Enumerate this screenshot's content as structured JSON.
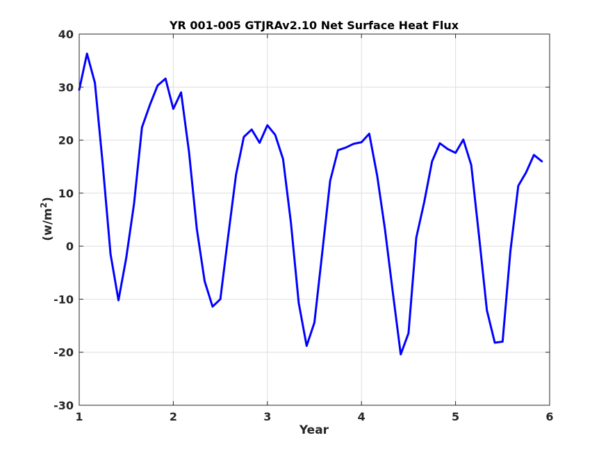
{
  "chart_data": {
    "type": "line",
    "title": "YR 001-005 GTJRAv2.10 Net Surface Heat Flux",
    "xlabel": "Year",
    "ylabel": "(w/m",
    "ylabel_superscript": "2",
    "ylabel_suffix": ")",
    "xlim": [
      1,
      6
    ],
    "ylim": [
      -30,
      40
    ],
    "xticks": [
      1,
      2,
      3,
      4,
      5,
      6
    ],
    "yticks": [
      -30,
      -20,
      -10,
      0,
      10,
      20,
      30,
      40
    ],
    "xtick_labels": [
      "1",
      "2",
      "3",
      "4",
      "5",
      "6"
    ],
    "ytick_labels": [
      "-30",
      "-20",
      "-10",
      "0",
      "10",
      "20",
      "30",
      "40"
    ],
    "grid": true,
    "line_color": "#0000ff",
    "series": [
      {
        "x": [
          1.0,
          1.083,
          1.167,
          1.25,
          1.333,
          1.417,
          1.5,
          1.583,
          1.667,
          1.75,
          1.833,
          1.917,
          2.0,
          2.083,
          2.167,
          2.25,
          2.333,
          2.417,
          2.5,
          2.583,
          2.667,
          2.75,
          2.833,
          2.917,
          3.0,
          3.083,
          3.167,
          3.25,
          3.333,
          3.417,
          3.5,
          3.583,
          3.667,
          3.75,
          3.833,
          3.917,
          4.0,
          4.083,
          4.167,
          4.25,
          4.333,
          4.417,
          4.5,
          4.583,
          4.667,
          4.75,
          4.833,
          4.917,
          5.0,
          5.083,
          5.167,
          5.25,
          5.333,
          5.417,
          5.5,
          5.583,
          5.667,
          5.75,
          5.833,
          5.917
        ],
        "values": [
          29.5,
          36.3,
          30.8,
          15.5,
          -1.5,
          -10.2,
          -2.2,
          8.0,
          22.4,
          26.6,
          30.3,
          31.6,
          25.9,
          29.0,
          17.8,
          3.2,
          -6.6,
          -11.4,
          -10.0,
          1.8,
          13.5,
          20.6,
          22.0,
          19.5,
          22.8,
          21.0,
          16.4,
          4.4,
          -10.7,
          -18.8,
          -14.4,
          -1.3,
          12.3,
          18.1,
          18.6,
          19.3,
          19.6,
          21.2,
          13.3,
          3.2,
          -8.7,
          -20.4,
          -16.4,
          1.6,
          8.3,
          16.0,
          19.4,
          18.3,
          17.6,
          20.1,
          15.3,
          1.9,
          -12.1,
          -18.2,
          -18.0,
          -1.0,
          11.4,
          13.9,
          17.2,
          16.0
        ]
      }
    ]
  }
}
